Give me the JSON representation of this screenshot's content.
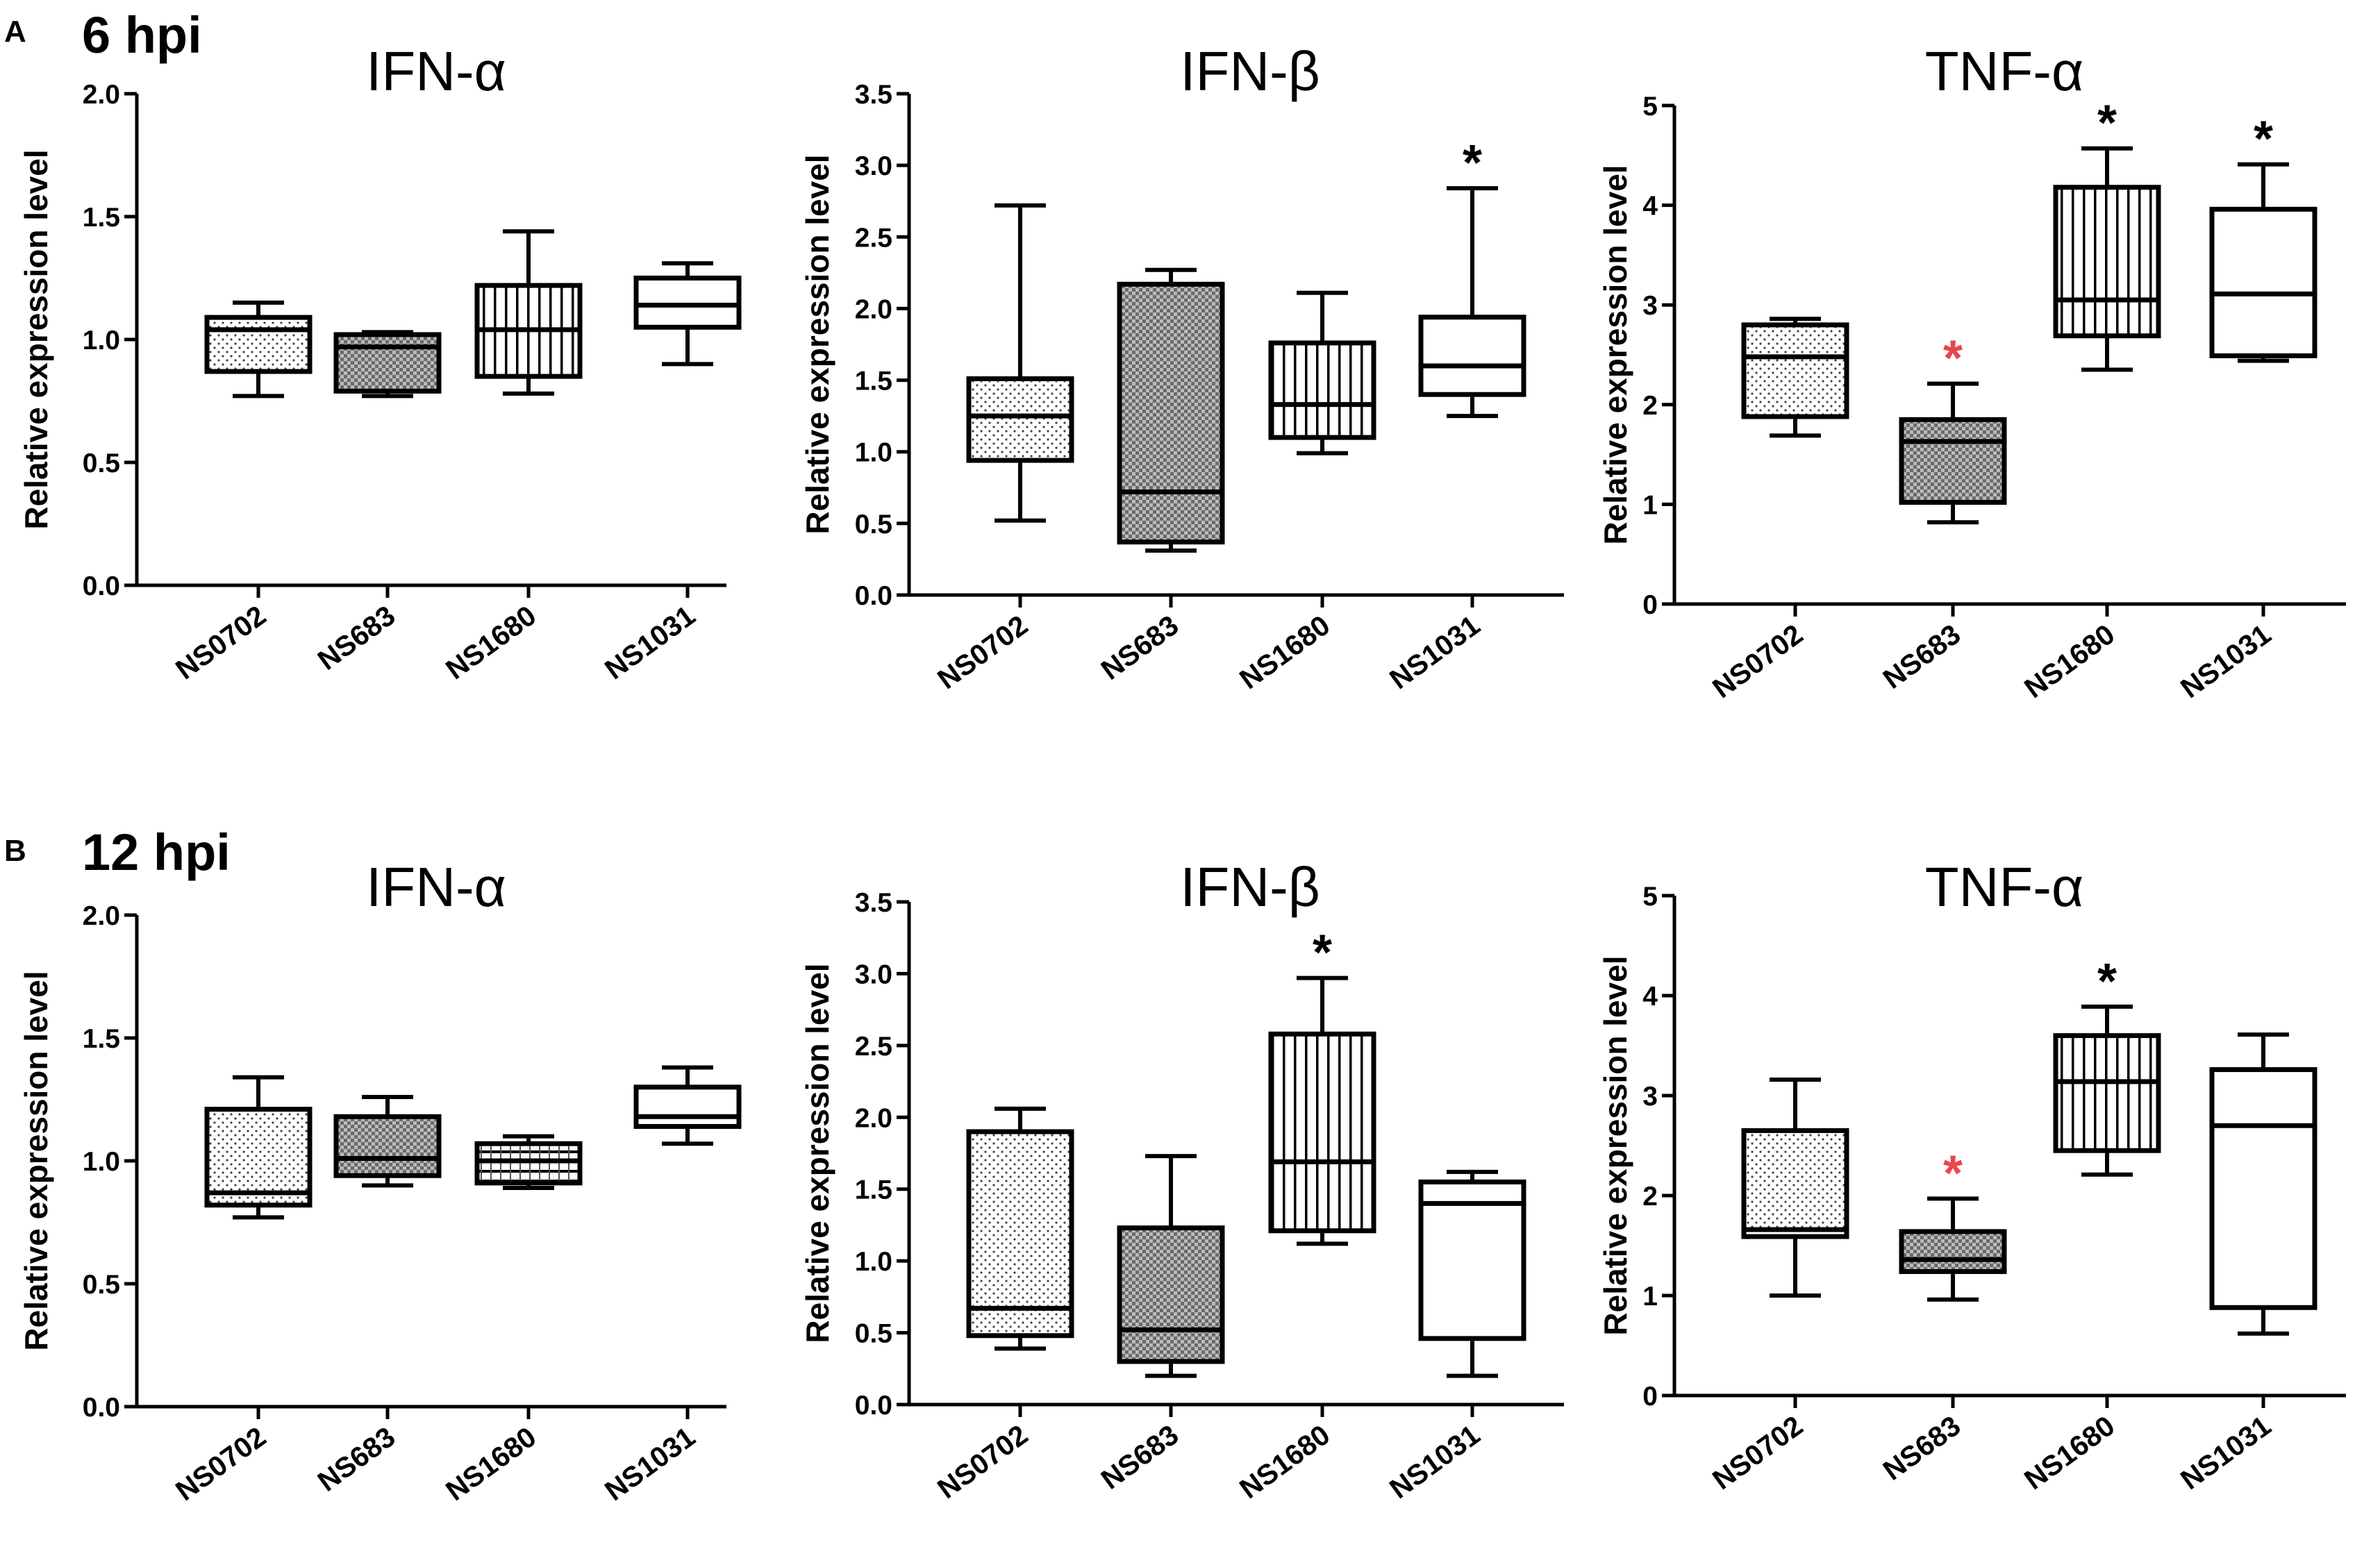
{
  "figure": {
    "panel_a": {
      "letter": "A",
      "label": "6 hpi"
    },
    "panel_b": {
      "letter": "B",
      "label": "12 hpi"
    }
  },
  "colors": {
    "significant_red": "#e8474b",
    "significant_black": "#000000"
  },
  "chart_data": [
    {
      "type": "box",
      "panel": "A",
      "timepoint": "6 hpi",
      "title": "IFN-α",
      "ylabel": "Relative expression level",
      "ylim": [
        0,
        2.0
      ],
      "yticks": [
        "0.0",
        "0.5",
        "1.0",
        "1.5",
        "2.0"
      ],
      "categories": [
        "NS0702",
        "NS683",
        "NS1680",
        "NS1031"
      ],
      "patterns": [
        "dots",
        "checker",
        "vertical",
        "plain"
      ],
      "boxes": [
        {
          "min": 0.77,
          "q1": 0.87,
          "median": 1.04,
          "q3": 1.09,
          "max": 1.15
        },
        {
          "min": 0.77,
          "q1": 0.79,
          "median": 0.97,
          "q3": 1.02,
          "max": 1.03
        },
        {
          "min": 0.78,
          "q1": 0.85,
          "median": 1.04,
          "q3": 1.22,
          "max": 1.44
        },
        {
          "min": 0.9,
          "q1": 1.05,
          "median": 1.14,
          "q3": 1.25,
          "max": 1.31
        }
      ],
      "significance": [
        null,
        null,
        null,
        null
      ]
    },
    {
      "type": "box",
      "panel": "A",
      "timepoint": "6 hpi",
      "title": "IFN-β",
      "ylabel": "Relative expression level",
      "ylim": [
        0,
        3.5
      ],
      "yticks": [
        "0.0",
        "0.5",
        "1.0",
        "1.5",
        "2.0",
        "2.5",
        "3.0",
        "3.5"
      ],
      "categories": [
        "NS0702",
        "NS683",
        "NS1680",
        "NS1031"
      ],
      "patterns": [
        "dots",
        "checker",
        "vertical",
        "plain"
      ],
      "boxes": [
        {
          "min": 0.52,
          "q1": 0.94,
          "median": 1.25,
          "q3": 1.51,
          "max": 2.72
        },
        {
          "min": 0.31,
          "q1": 0.37,
          "median": 0.72,
          "q3": 2.17,
          "max": 2.27
        },
        {
          "min": 0.99,
          "q1": 1.1,
          "median": 1.33,
          "q3": 1.76,
          "max": 2.11
        },
        {
          "min": 1.25,
          "q1": 1.4,
          "median": 1.6,
          "q3": 1.94,
          "max": 2.84
        }
      ],
      "significance": [
        null,
        null,
        null,
        {
          "mark": "*",
          "color": "black"
        }
      ]
    },
    {
      "type": "box",
      "panel": "A",
      "timepoint": "6 hpi",
      "title": "TNF-α",
      "ylabel": "Relative expression level",
      "ylim": [
        0,
        5
      ],
      "yticks": [
        "0",
        "1",
        "2",
        "3",
        "4",
        "5"
      ],
      "categories": [
        "NS0702",
        "NS683",
        "NS1680",
        "NS1031"
      ],
      "patterns": [
        "dots",
        "checker",
        "vertical",
        "plain"
      ],
      "boxes": [
        {
          "min": 1.69,
          "q1": 1.88,
          "median": 2.48,
          "q3": 2.8,
          "max": 2.86
        },
        {
          "min": 0.82,
          "q1": 1.02,
          "median": 1.63,
          "q3": 1.85,
          "max": 2.21
        },
        {
          "min": 2.35,
          "q1": 2.69,
          "median": 3.05,
          "q3": 4.18,
          "max": 4.57
        },
        {
          "min": 2.44,
          "q1": 2.49,
          "median": 3.11,
          "q3": 3.96,
          "max": 4.41
        }
      ],
      "significance": [
        null,
        {
          "mark": "*",
          "color": "red"
        },
        {
          "mark": "*",
          "color": "black"
        },
        {
          "mark": "*",
          "color": "black"
        }
      ]
    },
    {
      "type": "box",
      "panel": "B",
      "timepoint": "12 hpi",
      "title": "IFN-α",
      "ylabel": "Relative expression level",
      "ylim": [
        0,
        2.0
      ],
      "yticks": [
        "0.0",
        "0.5",
        "1.0",
        "1.5",
        "2.0"
      ],
      "categories": [
        "NS0702",
        "NS683",
        "NS1680",
        "NS1031"
      ],
      "patterns": [
        "dots",
        "checker",
        "horizontal",
        "plain"
      ],
      "boxes": [
        {
          "min": 0.77,
          "q1": 0.82,
          "median": 0.87,
          "q3": 1.21,
          "max": 1.34
        },
        {
          "min": 0.9,
          "q1": 0.94,
          "median": 1.01,
          "q3": 1.18,
          "max": 1.26
        },
        {
          "min": 0.89,
          "q1": 0.91,
          "median": 1.0,
          "q3": 1.07,
          "max": 1.1
        },
        {
          "min": 1.07,
          "q1": 1.14,
          "median": 1.18,
          "q3": 1.3,
          "max": 1.38
        }
      ],
      "significance": [
        null,
        null,
        null,
        null
      ]
    },
    {
      "type": "box",
      "panel": "B",
      "timepoint": "12 hpi",
      "title": "IFN-β",
      "ylabel": "Relative expression level",
      "ylim": [
        0,
        3.5
      ],
      "yticks": [
        "0.0",
        "0.5",
        "1.0",
        "1.5",
        "2.0",
        "2.5",
        "3.0",
        "3.5"
      ],
      "categories": [
        "NS0702",
        "NS683",
        "NS1680",
        "NS1031"
      ],
      "patterns": [
        "dots",
        "checker",
        "vertical",
        "plain"
      ],
      "boxes": [
        {
          "min": 0.39,
          "q1": 0.48,
          "median": 0.67,
          "q3": 1.9,
          "max": 2.06
        },
        {
          "min": 0.2,
          "q1": 0.3,
          "median": 0.52,
          "q3": 1.23,
          "max": 1.73
        },
        {
          "min": 1.12,
          "q1": 1.21,
          "median": 1.69,
          "q3": 2.58,
          "max": 2.97
        },
        {
          "min": 0.2,
          "q1": 0.46,
          "median": 1.4,
          "q3": 1.55,
          "max": 1.62
        }
      ],
      "significance": [
        null,
        null,
        {
          "mark": "*",
          "color": "black"
        },
        null
      ]
    },
    {
      "type": "box",
      "panel": "B",
      "timepoint": "12 hpi",
      "title": "TNF-α",
      "ylabel": "Relative expression level",
      "ylim": [
        0,
        5
      ],
      "yticks": [
        "0",
        "1",
        "2",
        "3",
        "4",
        "5"
      ],
      "categories": [
        "NS0702",
        "NS683",
        "NS1680",
        "NS1031"
      ],
      "patterns": [
        "dots",
        "checker",
        "vertical",
        "plain"
      ],
      "boxes": [
        {
          "min": 1.0,
          "q1": 1.59,
          "median": 1.66,
          "q3": 2.65,
          "max": 3.16
        },
        {
          "min": 0.96,
          "q1": 1.24,
          "median": 1.36,
          "q3": 1.64,
          "max": 1.97
        },
        {
          "min": 2.21,
          "q1": 2.45,
          "median": 3.14,
          "q3": 3.6,
          "max": 3.89
        },
        {
          "min": 0.62,
          "q1": 0.88,
          "median": 2.7,
          "q3": 3.26,
          "max": 3.61
        }
      ],
      "significance": [
        null,
        {
          "mark": "*",
          "color": "red"
        },
        {
          "mark": "*",
          "color": "black"
        },
        null
      ]
    }
  ]
}
